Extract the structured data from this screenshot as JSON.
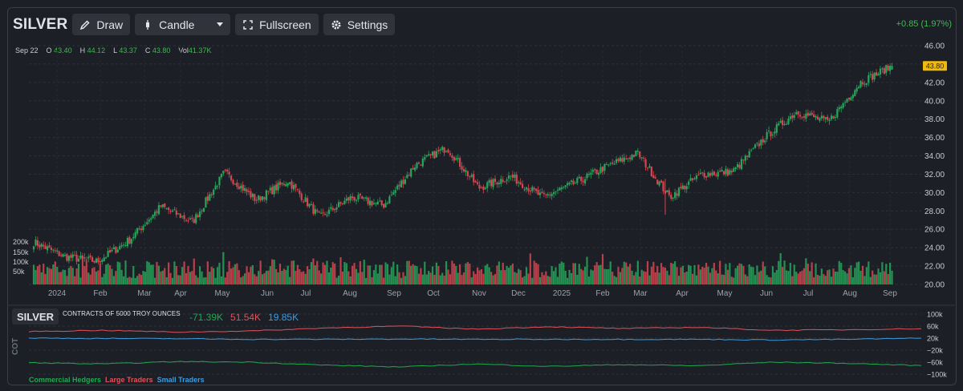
{
  "toolbar": {
    "symbol": "SILVER",
    "draw_label": "Draw",
    "chart_type_label": "Candle",
    "fullscreen_label": "Fullscreen",
    "settings_label": "Settings"
  },
  "price_change": "+0.85 (1.97%)",
  "ohlc": {
    "date": "Sep 22",
    "o_label": "O",
    "o": "43.40",
    "h_label": "H",
    "h": "44.12",
    "l_label": "L",
    "l": "43.37",
    "c_label": "C",
    "c": "43.80",
    "vol_label": "Vol",
    "vol": "41.37K"
  },
  "last_price_label": "43.80",
  "colors": {
    "up": "#26a65b",
    "down": "#d64550",
    "commercial": "#1faa4f",
    "large": "#e0525a",
    "small": "#3d9be0",
    "price_tag": "#f0b90b"
  },
  "cot": {
    "symbol": "SILVER",
    "title": "CONTRACTS OF 5000 TROY OUNCES",
    "commercial_value": "-71.39K",
    "large_value": "51.54K",
    "small_value": "19.85K",
    "axis_label": "COT",
    "legend": {
      "commercial": "Commercial Hedgers",
      "large": "Large Traders",
      "small": "Small Traders"
    },
    "y_ticks": [
      "100k",
      "60k",
      "20k",
      "−20k",
      "−60k",
      "−100k"
    ]
  },
  "chart_data": [
    {
      "type": "candlestick",
      "title": "",
      "y_ticks": [
        "46.00",
        "44.00",
        "42.00",
        "40.00",
        "38.00",
        "36.00",
        "34.00",
        "32.00",
        "30.00",
        "28.00",
        "26.00",
        "24.00",
        "22.00",
        "20.00"
      ],
      "ylim": [
        20,
        46
      ],
      "x_ticks": [
        "2024",
        "Feb",
        "Mar",
        "Apr",
        "May",
        "Jun",
        "Jul",
        "Aug",
        "Sep",
        "Oct",
        "Nov",
        "Dec",
        "2025",
        "Feb",
        "Mar",
        "Apr",
        "May",
        "Jun",
        "Jul",
        "Aug",
        "Sep"
      ],
      "close_series": [
        {
          "date": "2023-12",
          "close": 24.6
        },
        {
          "date": "2024-01",
          "close": 23.0
        },
        {
          "date": "2024-02",
          "close": 22.5
        },
        {
          "date": "2024-03",
          "close": 24.8
        },
        {
          "date": "2024-04",
          "close": 28.5
        },
        {
          "date": "2024-04-late",
          "close": 26.8
        },
        {
          "date": "2024-05",
          "close": 32.2
        },
        {
          "date": "2024-06",
          "close": 29.2
        },
        {
          "date": "2024-07",
          "close": 31.3
        },
        {
          "date": "2024-08",
          "close": 27.3
        },
        {
          "date": "2024-08-late",
          "close": 29.5
        },
        {
          "date": "2024-09",
          "close": 28.6
        },
        {
          "date": "2024-10",
          "close": 33.0
        },
        {
          "date": "2024-10-late",
          "close": 34.9
        },
        {
          "date": "2024-11",
          "close": 30.5
        },
        {
          "date": "2024-12",
          "close": 31.8
        },
        {
          "date": "2024-12-late",
          "close": 29.5
        },
        {
          "date": "2025-01",
          "close": 31.0
        },
        {
          "date": "2025-02",
          "close": 32.8
        },
        {
          "date": "2025-03",
          "close": 34.3
        },
        {
          "date": "2025-04",
          "close": 29.5
        },
        {
          "date": "2025-04-mid",
          "close": 32.0
        },
        {
          "date": "2025-05",
          "close": 32.3
        },
        {
          "date": "2025-06",
          "close": 36.0
        },
        {
          "date": "2025-07",
          "close": 38.8
        },
        {
          "date": "2025-08",
          "close": 37.7
        },
        {
          "date": "2025-09",
          "close": 42.0
        },
        {
          "date": "2025-09-22",
          "close": 43.8
        }
      ],
      "volume_ticks": [
        "200k",
        "150k",
        "100k",
        "50k"
      ],
      "last_bar": {
        "open": 43.4,
        "high": 44.12,
        "low": 43.37,
        "close": 43.8,
        "volume": "41.37K"
      }
    },
    {
      "type": "line",
      "title": "",
      "ylim": [
        -100000,
        100000
      ],
      "series": [
        {
          "name": "Commercial Hedgers",
          "values": [
            -62000,
            -66000,
            -58000,
            -60000,
            -70000,
            -76000,
            -66000,
            -74000,
            -68000,
            -72000,
            -60000,
            -64000,
            -71390
          ]
        },
        {
          "name": "Large Traders",
          "values": [
            42000,
            46000,
            40000,
            44000,
            54000,
            60000,
            50000,
            58000,
            52000,
            56000,
            46000,
            48000,
            51540
          ]
        },
        {
          "name": "Small Traders",
          "values": [
            20000,
            19000,
            18000,
            16000,
            16000,
            17000,
            16000,
            16000,
            16000,
            16000,
            14000,
            16000,
            19850
          ]
        }
      ]
    }
  ]
}
